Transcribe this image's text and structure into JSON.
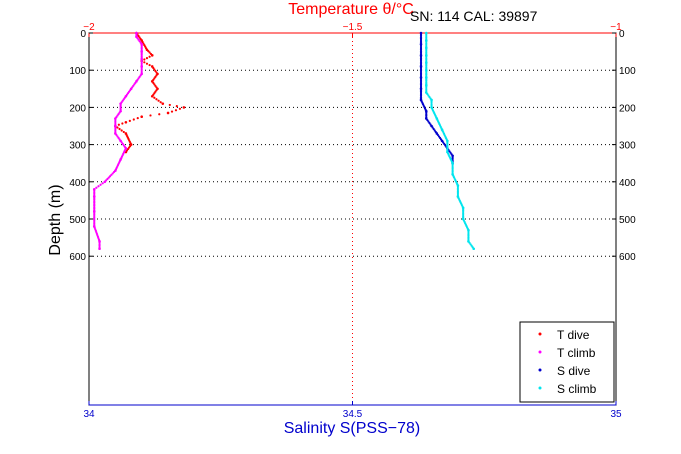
{
  "header": {
    "info": "SN: 114  CAL: 39897"
  },
  "chart_data": {
    "type": "scatter",
    "title": "Temperature θ/°C",
    "xlabel": "Salinity S(PSS−78)",
    "ylabel": "Depth (m)",
    "temp_axis": {
      "lim": [
        -2,
        -1
      ],
      "ticks": [
        "−2",
        "−1.5",
        "−1"
      ],
      "tick_values": [
        -2,
        -1.5,
        -1
      ]
    },
    "sal_axis": {
      "lim": [
        34,
        35
      ],
      "ticks": [
        "34",
        "34.5",
        "35"
      ],
      "tick_values": [
        34,
        34.5,
        35
      ]
    },
    "depth_axis": {
      "lim": [
        0,
        1000
      ],
      "reversed": true,
      "ticks": [
        "0",
        "100",
        "200",
        "300",
        "400",
        "500",
        "600"
      ],
      "tick_values": [
        0,
        100,
        200,
        300,
        400,
        500,
        600
      ]
    },
    "grid": {
      "horizontal_dotted_at": [
        100,
        200,
        300,
        400,
        500,
        600
      ],
      "vertical_dotted_at_temp": -1.5
    },
    "legend": {
      "placement": "bottom-right"
    },
    "colors": {
      "t_dive": "#ff0000",
      "t_climb": "#ff00ff",
      "s_dive": "#0000cc",
      "s_climb": "#00e5ee",
      "temp_axis": "#ff0000",
      "sal_axis": "#0000cc"
    },
    "series": [
      {
        "name": "T dive",
        "axis": "temp",
        "color": "#ff0000",
        "points": [
          [
            -1.91,
            0
          ],
          [
            -1.9,
            20
          ],
          [
            -1.89,
            45
          ],
          [
            -1.88,
            60
          ],
          [
            -1.9,
            75
          ],
          [
            -1.88,
            90
          ],
          [
            -1.87,
            110
          ],
          [
            -1.88,
            130
          ],
          [
            -1.87,
            150
          ],
          [
            -1.88,
            170
          ],
          [
            -1.86,
            190
          ],
          [
            -1.82,
            200
          ],
          [
            -1.85,
            215
          ],
          [
            -1.9,
            225
          ],
          [
            -1.93,
            240
          ],
          [
            -1.95,
            250
          ],
          [
            -1.93,
            270
          ],
          [
            -1.92,
            300
          ],
          [
            -1.93,
            320
          ]
        ]
      },
      {
        "name": "T climb",
        "axis": "temp",
        "color": "#ff00ff",
        "points": [
          [
            -1.98,
            580
          ],
          [
            -1.98,
            560
          ],
          [
            -1.99,
            520
          ],
          [
            -1.99,
            480
          ],
          [
            -1.99,
            440
          ],
          [
            -1.99,
            420
          ],
          [
            -1.97,
            400
          ],
          [
            -1.95,
            370
          ],
          [
            -1.94,
            340
          ],
          [
            -1.93,
            310
          ],
          [
            -1.94,
            290
          ],
          [
            -1.95,
            270
          ],
          [
            -1.95,
            250
          ],
          [
            -1.95,
            230
          ],
          [
            -1.94,
            210
          ],
          [
            -1.94,
            190
          ],
          [
            -1.93,
            170
          ],
          [
            -1.92,
            150
          ],
          [
            -1.91,
            130
          ],
          [
            -1.9,
            110
          ],
          [
            -1.9,
            90
          ],
          [
            -1.9,
            70
          ],
          [
            -1.9,
            50
          ],
          [
            -1.9,
            30
          ],
          [
            -1.91,
            10
          ],
          [
            -1.91,
            0
          ]
        ]
      },
      {
        "name": "S dive",
        "axis": "sal",
        "color": "#0000cc",
        "points": [
          [
            34.63,
            0
          ],
          [
            34.63,
            30
          ],
          [
            34.63,
            60
          ],
          [
            34.63,
            90
          ],
          [
            34.63,
            120
          ],
          [
            34.63,
            150
          ],
          [
            34.63,
            180
          ],
          [
            34.64,
            210
          ],
          [
            34.64,
            230
          ],
          [
            34.65,
            250
          ],
          [
            34.66,
            270
          ],
          [
            34.67,
            290
          ],
          [
            34.68,
            310
          ],
          [
            34.69,
            330
          ],
          [
            34.69,
            350
          ]
        ]
      },
      {
        "name": "S climb",
        "axis": "sal",
        "color": "#00e5ee",
        "points": [
          [
            34.73,
            580
          ],
          [
            34.72,
            560
          ],
          [
            34.72,
            530
          ],
          [
            34.71,
            500
          ],
          [
            34.71,
            470
          ],
          [
            34.7,
            440
          ],
          [
            34.7,
            410
          ],
          [
            34.69,
            380
          ],
          [
            34.69,
            350
          ],
          [
            34.68,
            320
          ],
          [
            34.68,
            290
          ],
          [
            34.67,
            260
          ],
          [
            34.66,
            230
          ],
          [
            34.65,
            200
          ],
          [
            34.65,
            180
          ],
          [
            34.64,
            160
          ],
          [
            34.64,
            140
          ],
          [
            34.64,
            120
          ],
          [
            34.64,
            100
          ],
          [
            34.64,
            80
          ],
          [
            34.64,
            60
          ],
          [
            34.64,
            40
          ],
          [
            34.64,
            20
          ],
          [
            34.64,
            0
          ]
        ]
      }
    ]
  }
}
